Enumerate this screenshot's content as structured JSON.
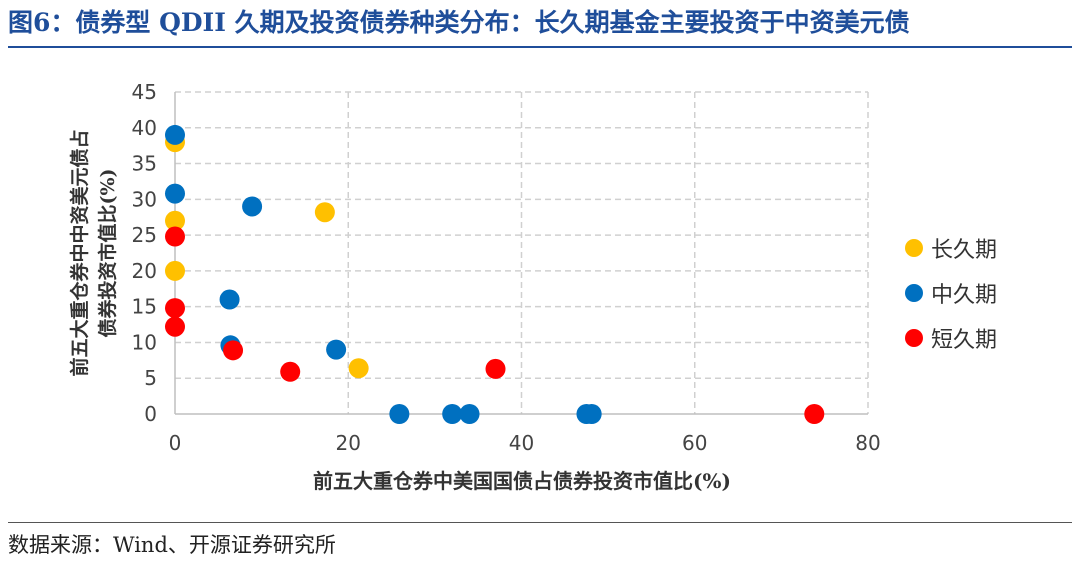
{
  "header": {
    "title": "图6：债券型 QDII 久期及投资债券种类分布：长久期基金主要投资于中资美元债"
  },
  "footer": {
    "source": "数据来源：Wind、开源证券研究所"
  },
  "chart_data": {
    "type": "scatter",
    "title": "图6：债券型 QDII 久期及投资债券种类分布：长久期基金主要投资于中资美元债",
    "xlabel": "前五大重仓券中美国国债占债券投资市值比(%)",
    "ylabel": "前五大重仓券中中资美元债占债券投资市值比(%)",
    "xlim": [
      0,
      80
    ],
    "ylim": [
      0,
      45
    ],
    "x_ticks": [
      "0",
      "20",
      "40",
      "60",
      "80"
    ],
    "y_ticks": [
      "0",
      "5",
      "10",
      "15",
      "20",
      "25",
      "30",
      "35",
      "40",
      "45"
    ],
    "grid": "dashed",
    "legend_position": "right",
    "series": [
      {
        "name": "长久期",
        "color": "#FFC000",
        "points": [
          [
            0,
            38
          ],
          [
            0,
            27
          ],
          [
            0,
            20
          ],
          [
            17.3,
            28.2
          ],
          [
            21.2,
            6.4
          ]
        ]
      },
      {
        "name": "中久期",
        "color": "#0070C0",
        "points": [
          [
            0,
            39
          ],
          [
            0,
            30.8
          ],
          [
            8.9,
            29
          ],
          [
            6.3,
            16
          ],
          [
            6.4,
            9.6
          ],
          [
            18.6,
            9
          ],
          [
            25.9,
            0
          ],
          [
            32,
            0
          ],
          [
            34,
            0
          ],
          [
            47.5,
            0
          ],
          [
            48.1,
            0
          ]
        ]
      },
      {
        "name": "短久期",
        "color": "#FF0000",
        "points": [
          [
            0,
            24.8
          ],
          [
            0,
            14.8
          ],
          [
            0,
            12.2
          ],
          [
            6.7,
            8.9
          ],
          [
            13.3,
            5.9
          ],
          [
            37,
            6.3
          ],
          [
            73.8,
            0
          ]
        ]
      }
    ]
  }
}
